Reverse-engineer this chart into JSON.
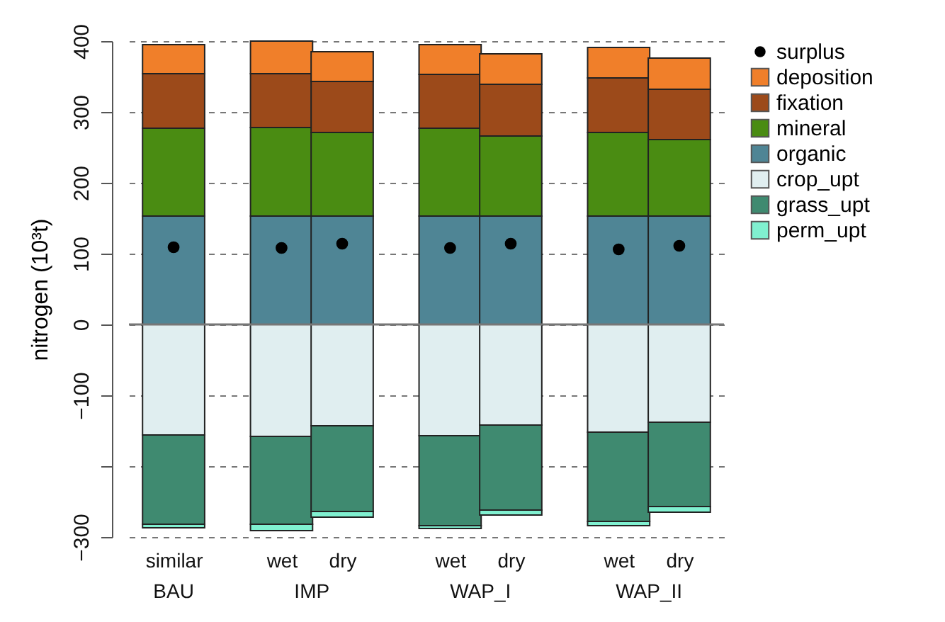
{
  "chart_data": {
    "type": "bar",
    "stacked": true,
    "ylabel": "nitrogen (10³t)",
    "categories": [
      "similar",
      "wet",
      "dry",
      "wet",
      "dry",
      "wet",
      "dry"
    ],
    "annotations": [
      "BAU",
      "IMP",
      "WAP_I",
      "WAP_II"
    ],
    "series": [
      {
        "name": "surplus",
        "type": "scatter",
        "color": "#000000",
        "values": [
          109,
          108,
          114,
          108,
          114,
          106,
          111
        ]
      },
      {
        "name": "organic",
        "color": "#4f8595",
        "values": [
          153,
          153,
          153,
          153,
          153,
          153,
          153
        ]
      },
      {
        "name": "mineral",
        "color": "#4a8c12",
        "values": [
          124,
          125,
          118,
          124,
          113,
          118,
          108
        ]
      },
      {
        "name": "fixation",
        "color": "#9c4a1a",
        "values": [
          77,
          76,
          72,
          76,
          73,
          77,
          71
        ]
      },
      {
        "name": "deposition",
        "color": "#f07f2a",
        "values": [
          41,
          46,
          42,
          42,
          43,
          43,
          44
        ]
      },
      {
        "name": "crop_upt",
        "color": "#e0eef0",
        "values": [
          -156,
          -158,
          -143,
          -157,
          -142,
          -152,
          -138
        ]
      },
      {
        "name": "grass_upt",
        "color": "#3f8a70",
        "values": [
          -126,
          -124,
          -121,
          -127,
          -120,
          -126,
          -119
        ]
      },
      {
        "name": "perm_upt",
        "color": "#80f0d0",
        "values": [
          -5,
          -9,
          -8,
          -4,
          -7,
          -6,
          -8
        ]
      }
    ],
    "ylim": [
      -300,
      400
    ],
    "yticks": [
      -300,
      {
        "value": -200,
        "label": null
      },
      -100,
      0,
      100,
      200,
      300,
      400
    ],
    "grid": "y",
    "line_style": "dashed",
    "marker": "circle",
    "legend": "top right",
    "ref_lines": [
      {
        "axis": "y",
        "value": 0
      }
    ]
  }
}
